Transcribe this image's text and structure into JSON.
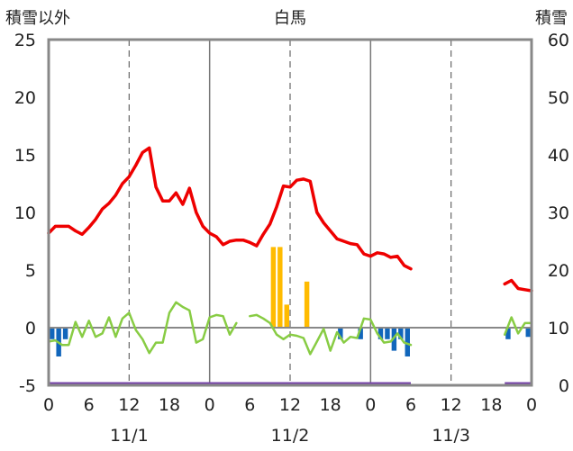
{
  "chart_data": {
    "type": "bar+line",
    "title": "白馬",
    "left_axis_label": "積雪以外",
    "right_axis_label": "積雪",
    "left_ylim": [
      -5,
      25
    ],
    "left_ticks": [
      25,
      20,
      15,
      10,
      5,
      0,
      -5
    ],
    "right_ylim": [
      0,
      60
    ],
    "right_ticks": [
      60,
      50,
      40,
      30,
      20,
      10,
      0
    ],
    "x_range_hours": [
      0,
      72
    ],
    "x_tick_labels": [
      "0",
      "6",
      "12",
      "18",
      "0",
      "6",
      "12",
      "18",
      "0",
      "6",
      "12",
      "18",
      "0"
    ],
    "date_labels": [
      "11/1",
      "11/2",
      "11/3"
    ],
    "colors": {
      "temperature": "#ee0000",
      "precip": "#ffbb00",
      "sunshine_line": "#88cc44",
      "snow_bars": "#1166bb",
      "snow_depth": "#7744aa",
      "frame": "#888888"
    },
    "temperature_red": [
      [
        0,
        8.2
      ],
      [
        1,
        8.8
      ],
      [
        2,
        8.8
      ],
      [
        3,
        8.8
      ],
      [
        4,
        8.4
      ],
      [
        5,
        8.1
      ],
      [
        6,
        8.7
      ],
      [
        7,
        9.4
      ],
      [
        8,
        10.3
      ],
      [
        9,
        10.8
      ],
      [
        10,
        11.5
      ],
      [
        11,
        12.5
      ],
      [
        12,
        13.1
      ],
      [
        13,
        14.1
      ],
      [
        14,
        15.2
      ],
      [
        15,
        15.6
      ],
      [
        16,
        12.2
      ],
      [
        17,
        11.0
      ],
      [
        18,
        11.0
      ],
      [
        19,
        11.7
      ],
      [
        20,
        10.7
      ],
      [
        21,
        12.1
      ],
      [
        22,
        10.0
      ],
      [
        23,
        8.8
      ],
      [
        24,
        8.2
      ],
      [
        25,
        7.9
      ],
      [
        26,
        7.2
      ],
      [
        27,
        7.5
      ],
      [
        28,
        7.6
      ],
      [
        29,
        7.6
      ],
      [
        30,
        7.4
      ],
      [
        31,
        7.1
      ],
      [
        32,
        8.1
      ],
      [
        33,
        9.0
      ],
      [
        34,
        10.5
      ],
      [
        35,
        12.3
      ],
      [
        36,
        12.2
      ],
      [
        37,
        12.8
      ],
      [
        38,
        12.9
      ],
      [
        39,
        12.7
      ],
      [
        40,
        10.0
      ],
      [
        41,
        9.1
      ],
      [
        42,
        8.4
      ],
      [
        43,
        7.7
      ],
      [
        44,
        7.5
      ],
      [
        45,
        7.3
      ],
      [
        46,
        7.2
      ],
      [
        47,
        6.4
      ],
      [
        48,
        6.2
      ],
      [
        49,
        6.5
      ],
      [
        50,
        6.4
      ],
      [
        51,
        6.1
      ],
      [
        52,
        6.2
      ],
      [
        53,
        5.4
      ],
      [
        54,
        5.1
      ],
      null,
      [
        68,
        3.8
      ],
      [
        69,
        4.1
      ],
      [
        70,
        3.4
      ],
      [
        71,
        3.3
      ],
      [
        72,
        3.2
      ]
    ],
    "sunshine_green": [
      [
        0,
        -1.2
      ],
      [
        1,
        -1.1
      ],
      [
        2,
        -1.5
      ],
      [
        3,
        -1.5
      ],
      [
        4,
        0.5
      ],
      [
        5,
        -0.8
      ],
      [
        6,
        0.6
      ],
      [
        7,
        -0.8
      ],
      [
        8,
        -0.5
      ],
      [
        9,
        0.9
      ],
      [
        10,
        -0.8
      ],
      [
        11,
        0.8
      ],
      [
        12,
        1.3
      ],
      [
        13,
        -0.2
      ],
      [
        14,
        -1.0
      ],
      [
        15,
        -2.2
      ],
      [
        16,
        -1.3
      ],
      [
        17,
        -1.3
      ],
      [
        18,
        1.3
      ],
      [
        19,
        2.2
      ],
      [
        20,
        1.8
      ],
      [
        21,
        1.5
      ],
      [
        22,
        -1.3
      ],
      [
        23,
        -1.0
      ],
      [
        24,
        0.9
      ],
      [
        25,
        1.1
      ],
      [
        26,
        1.0
      ],
      [
        27,
        -0.6
      ],
      [
        28,
        0.4
      ],
      null,
      [
        30,
        1.0
      ],
      [
        31,
        1.1
      ],
      [
        32,
        0.8
      ],
      [
        33,
        0.4
      ],
      [
        34,
        -0.6
      ],
      [
        35,
        -1.0
      ],
      [
        36,
        -0.6
      ],
      [
        37,
        -0.7
      ],
      [
        38,
        -0.9
      ],
      [
        39,
        -2.3
      ],
      [
        40,
        -1.2
      ],
      [
        41,
        -0.1
      ],
      [
        42,
        -2.0
      ],
      [
        43,
        -0.4
      ],
      [
        44,
        -1.3
      ],
      [
        45,
        -0.8
      ],
      [
        46,
        -0.9
      ],
      [
        47,
        0.8
      ],
      [
        48,
        0.7
      ],
      [
        49,
        -0.5
      ],
      [
        50,
        -1.3
      ],
      [
        51,
        -1.2
      ],
      [
        52,
        -0.5
      ],
      [
        53,
        -1.3
      ],
      [
        54,
        -1.5
      ],
      null,
      [
        68,
        -0.6
      ],
      [
        69,
        0.9
      ],
      [
        70,
        -0.5
      ],
      [
        71,
        0.4
      ],
      [
        72,
        0.4
      ]
    ],
    "precip_bars": [
      [
        33,
        7.0
      ],
      [
        34,
        7.0
      ],
      [
        35,
        2.0
      ],
      [
        38,
        4.0
      ]
    ],
    "snow_bars": [
      [
        0,
        -1.0
      ],
      [
        1,
        -2.5
      ],
      [
        2,
        -1.0
      ],
      [
        43,
        -1.0
      ],
      [
        46,
        -1.0
      ],
      [
        49,
        -1.0
      ],
      [
        50,
        -1.0
      ],
      [
        51,
        -2.0
      ],
      [
        52,
        -1.0
      ],
      [
        53,
        -2.5
      ],
      [
        68,
        -1.0
      ],
      [
        71,
        -0.8
      ]
    ],
    "snow_depth_segments": [
      [
        0,
        54
      ],
      [
        68,
        72
      ]
    ],
    "snow_depth_value": 0
  }
}
